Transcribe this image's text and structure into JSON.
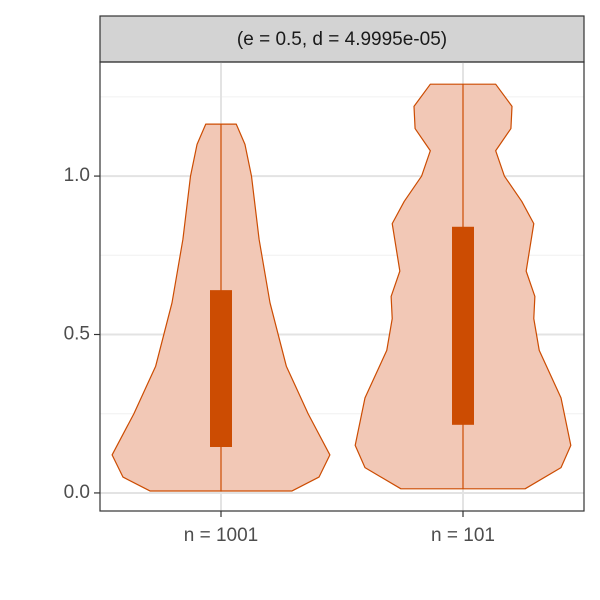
{
  "chart_data": {
    "type": "violin",
    "facet_title": "(e = 0.5, d = 4.9995e-05)",
    "categories": [
      "n = 1001",
      "n = 101"
    ],
    "ylim": [
      -0.057,
      1.36
    ],
    "yticks": [
      {
        "value": 0,
        "label": "0.0"
      },
      {
        "value": 0.5,
        "label": "0.5"
      },
      {
        "value": 1,
        "label": "1.0"
      }
    ],
    "minor_yticks": [
      0.25,
      0.75,
      1.25
    ],
    "grid": true,
    "fill": "#f2c8b6",
    "color": "#cc4c02",
    "series": [
      {
        "density_y": [
          0.006,
          0.05,
          0.12,
          0.25,
          0.4,
          0.6,
          0.8,
          1.0,
          1.1,
          1.164
        ],
        "density": [
          0.65,
          0.9,
          1.0,
          0.8,
          0.6,
          0.45,
          0.35,
          0.28,
          0.22,
          0.14
        ],
        "min": 0.006,
        "q1": 0.145,
        "q3": 0.64,
        "max": 1.164
      },
      {
        "density_y": [
          0.013,
          0.08,
          0.15,
          0.3,
          0.45,
          0.55,
          0.62,
          0.7,
          0.85,
          0.92,
          1.0,
          1.08,
          1.15,
          1.22,
          1.29
        ],
        "density": [
          0.57,
          0.9,
          0.99,
          0.9,
          0.7,
          0.65,
          0.66,
          0.58,
          0.65,
          0.54,
          0.38,
          0.3,
          0.44,
          0.45,
          0.3
        ],
        "min": 0.013,
        "q1": 0.215,
        "q3": 0.84,
        "max": 1.29
      }
    ]
  }
}
